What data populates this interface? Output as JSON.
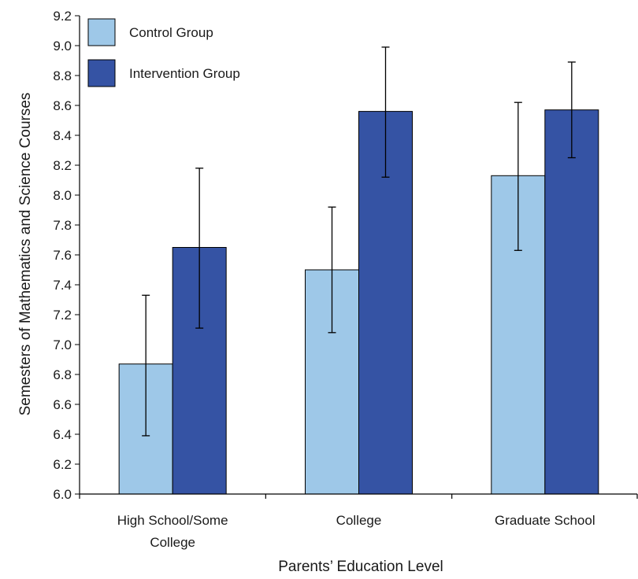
{
  "chart_data": {
    "type": "bar",
    "title": "",
    "xlabel": "Parents’ Education Level",
    "ylabel": "Semesters of Mathematics and Science Courses",
    "ylim": [
      6.0,
      9.2
    ],
    "yticks": [
      "6.0",
      "6.2",
      "6.4",
      "6.6",
      "6.8",
      "7.0",
      "7.2",
      "7.4",
      "7.6",
      "7.8",
      "8.0",
      "8.2",
      "8.4",
      "8.6",
      "8.8",
      "9.0",
      "9.2"
    ],
    "categories": [
      [
        "High School/Some",
        "College"
      ],
      [
        "College"
      ],
      [
        "Graduate School"
      ]
    ],
    "series": [
      {
        "name": "Control Group",
        "color": "#9ec8e8",
        "values": [
          6.87,
          7.5,
          8.13
        ],
        "error_low": [
          6.39,
          7.08,
          7.63
        ],
        "error_high": [
          7.33,
          7.92,
          8.62
        ]
      },
      {
        "name": "Intervention Group",
        "color": "#3553a4",
        "values": [
          7.65,
          8.56,
          8.57
        ],
        "error_low": [
          7.11,
          8.12,
          8.25
        ],
        "error_high": [
          8.18,
          8.99,
          8.89
        ]
      }
    ],
    "legend_position": "top-left",
    "grid": false,
    "error_bars": true
  }
}
